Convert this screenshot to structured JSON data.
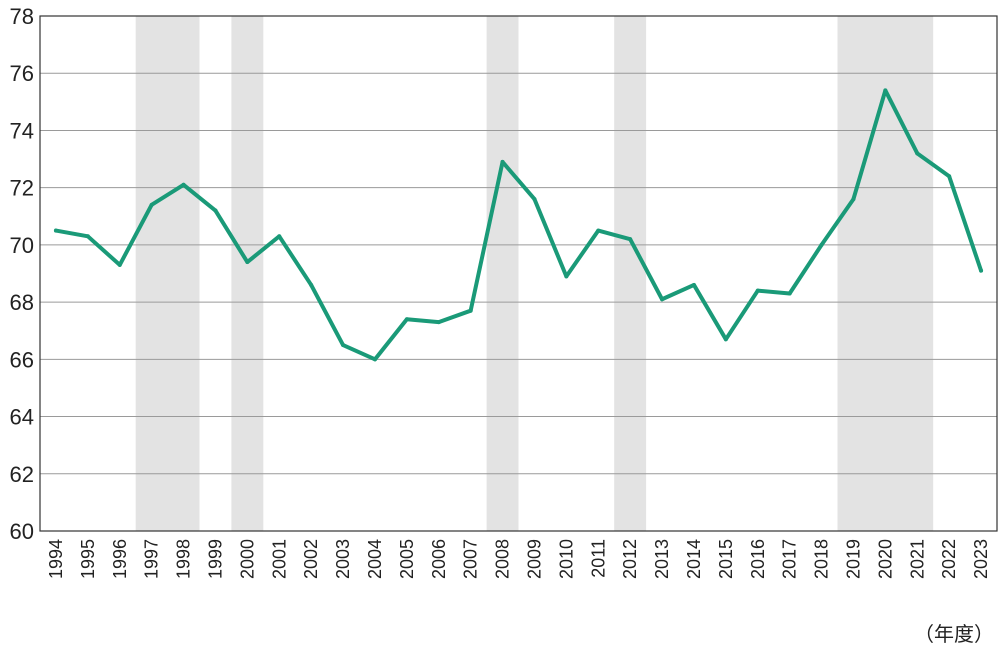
{
  "chart_data": {
    "type": "line",
    "x": [
      "1994",
      "1995",
      "1996",
      "1997",
      "1998",
      "1999",
      "2000",
      "2001",
      "2002",
      "2003",
      "2004",
      "2005",
      "2006",
      "2007",
      "2008",
      "2009",
      "2010",
      "2011",
      "2012",
      "2013",
      "2014",
      "2015",
      "2016",
      "2017",
      "2018",
      "2019",
      "2020",
      "2021",
      "2022",
      "2023"
    ],
    "series": [
      {
        "values": [
          70.5,
          70.3,
          69.3,
          71.4,
          72.1,
          71.2,
          69.4,
          70.3,
          68.6,
          66.5,
          66.0,
          67.4,
          67.3,
          67.7,
          72.9,
          71.6,
          68.9,
          70.5,
          70.2,
          68.1,
          68.6,
          66.7,
          68.4,
          68.3,
          70.0,
          71.6,
          75.4,
          73.2,
          72.4,
          69.1
        ]
      }
    ],
    "ylim": [
      60,
      78
    ],
    "yticks": [
      "60",
      "62",
      "64",
      "66",
      "68",
      "70",
      "72",
      "74",
      "76",
      "78"
    ],
    "shaded_periods": [
      {
        "from": "1997",
        "to": "1998"
      },
      {
        "from": "2000",
        "to": "2000"
      },
      {
        "from": "2008",
        "to": "2008"
      },
      {
        "from": "2012",
        "to": "2012"
      },
      {
        "from": "2019",
        "to": "2021"
      }
    ],
    "xunit": "（年度）",
    "grid": true,
    "line_color": "#1a9a78",
    "shade_color": "#e3e3e3",
    "grid_color": "#9a9a9a"
  }
}
